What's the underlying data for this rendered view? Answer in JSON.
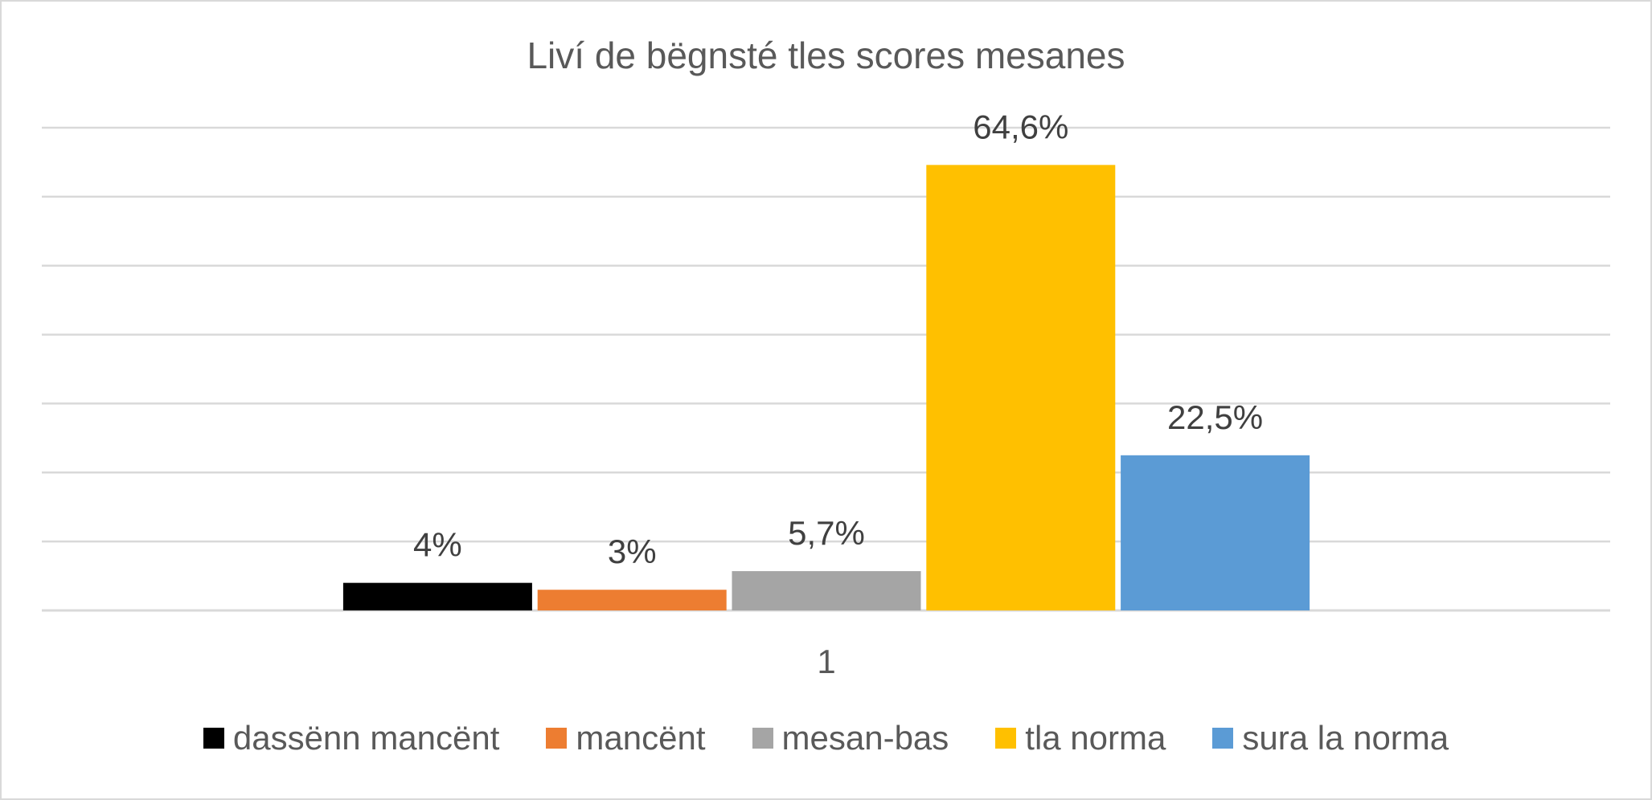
{
  "chart_data": {
    "type": "bar",
    "title": "Liví de bëgnsté tles scores mesanes",
    "categories": [
      "1"
    ],
    "series": [
      {
        "name": "dassënn mancënt",
        "values": [
          4
        ],
        "label": "4%",
        "color": "#000000"
      },
      {
        "name": "mancënt",
        "values": [
          3
        ],
        "label": "3%",
        "color": "#ed7d31"
      },
      {
        "name": "mesan-bas",
        "values": [
          5.7
        ],
        "label": "5,7%",
        "color": "#a5a5a5"
      },
      {
        "name": "tla norma",
        "values": [
          64.6
        ],
        "label": "64,6%",
        "color": "#ffc000"
      },
      {
        "name": "sura la norma",
        "values": [
          22.5
        ],
        "label": "22,5%",
        "color": "#5b9bd5"
      }
    ],
    "ylim": [
      0,
      70
    ],
    "y_gridline_step": 10,
    "y_axis_labels_shown": false,
    "grid": true,
    "legend_position": "bottom",
    "xlabel": "",
    "ylabel": ""
  }
}
